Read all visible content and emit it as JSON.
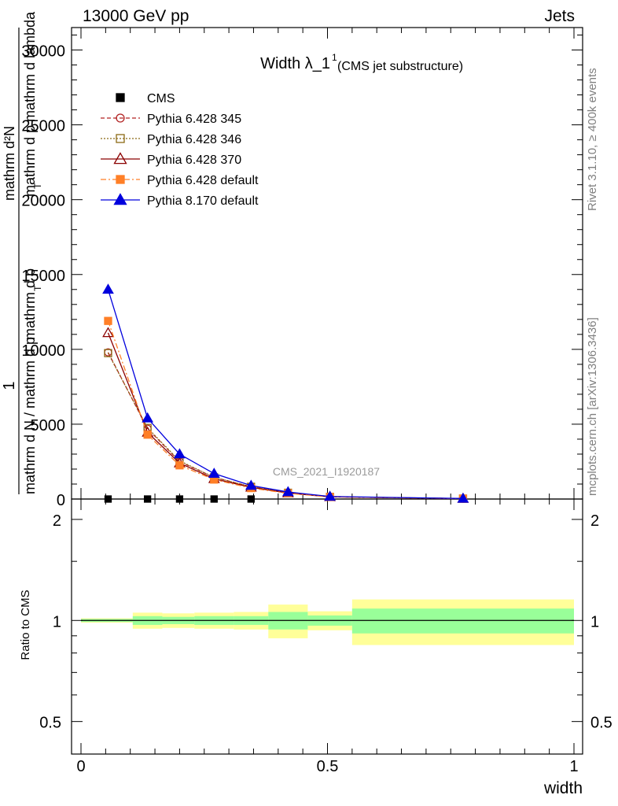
{
  "header": {
    "left": "13000 GeV pp",
    "right": "Jets"
  },
  "side_labels": {
    "rivet": "Rivet 3.1.10, ≥ 400k events",
    "mcplots": "mcplots.cern.ch [arXiv:1306.3436]"
  },
  "chart_data": [
    {
      "type": "line",
      "title_main": "Width λ_1",
      "title_sup": "1",
      "title_sub": "(CMS jet substructure)",
      "watermark": "CMS_2021_I1920187",
      "ylabel": {
        "numerator": "1",
        "line1": "mathrm d N / mathrm d p",
        "line2": "mathrm d p",
        "line3": "mathrm d p",
        "line4": "mathrm d lambda",
        "frac_top": "mathrm d²N",
        "full": "mathrm d N / mathrm d p_T mathrm d p_T mathrm d lambda"
      },
      "ylabel_parts": [
        "1",
        "mathrm d N / mathrm d p",
        "mathrm d p",
        "mathrm d lambda",
        "mathrm d²N",
        "T",
        "T"
      ],
      "xlim": [
        0,
        1
      ],
      "ylim": [
        0,
        31500
      ],
      "yticks": [
        0,
        5000,
        10000,
        15000,
        20000,
        25000,
        30000
      ],
      "ytick_labels": [
        "0",
        "5000",
        "10000",
        "15000",
        "20000",
        "25000",
        "30000"
      ],
      "legend_position": "top-left",
      "series": [
        {
          "name": "CMS",
          "color": "#000000",
          "marker": "filled-square",
          "line": "none",
          "x": [
            0.055,
            0.135,
            0.2,
            0.27,
            0.345
          ],
          "y": [
            0,
            0,
            0,
            0,
            0
          ]
        },
        {
          "name": "Pythia 6.428 345",
          "color": "#b22222",
          "marker": "open-circle",
          "line": "dashed",
          "x": [
            0.055,
            0.135,
            0.2,
            0.27,
            0.345,
            0.42,
            0.505,
            0.775
          ],
          "y": [
            9800,
            4700,
            2500,
            1450,
            820,
            420,
            150,
            30
          ]
        },
        {
          "name": "Pythia 6.428 346",
          "color": "#8b6914",
          "marker": "open-square",
          "line": "dotted",
          "x": [
            0.055,
            0.135,
            0.2,
            0.27,
            0.345,
            0.42,
            0.505,
            0.775
          ],
          "y": [
            9750,
            4750,
            2550,
            1450,
            820,
            420,
            150,
            30
          ]
        },
        {
          "name": "Pythia 6.428 370",
          "color": "#8b0000",
          "marker": "open-triangle",
          "line": "solid",
          "x": [
            0.055,
            0.135,
            0.2,
            0.27,
            0.345,
            0.42,
            0.505,
            0.775
          ],
          "y": [
            11100,
            4450,
            2400,
            1350,
            780,
            400,
            145,
            30
          ]
        },
        {
          "name": "Pythia 6.428 default",
          "color": "#ff7f27",
          "marker": "filled-square",
          "line": "dashdot",
          "x": [
            0.055,
            0.135,
            0.2,
            0.27,
            0.345,
            0.42,
            0.505,
            0.775
          ],
          "y": [
            11900,
            4300,
            2250,
            1300,
            730,
            380,
            140,
            28
          ]
        },
        {
          "name": "Pythia 8.170 default",
          "color": "#0000dd",
          "marker": "filled-triangle",
          "line": "solid",
          "x": [
            0.055,
            0.135,
            0.2,
            0.27,
            0.345,
            0.42,
            0.505,
            0.775
          ],
          "y": [
            14000,
            5400,
            3000,
            1700,
            900,
            470,
            170,
            35
          ]
        }
      ]
    },
    {
      "type": "area",
      "ylabel": "Ratio to CMS",
      "xlabel": "width",
      "xlim": [
        0,
        1
      ],
      "ylim": [
        0.4,
        2.3
      ],
      "scale": "log",
      "yticks": [
        0.5,
        1,
        2
      ],
      "ytick_labels": [
        "0.5",
        "1",
        "2"
      ],
      "xticks": [
        0,
        0.5,
        1
      ],
      "xtick_labels": [
        "0",
        "0.5",
        "1"
      ],
      "bins": [
        {
          "x0": 0.0,
          "x1": 0.105,
          "inner": [
            0.99,
            1.01
          ],
          "outer": [
            0.985,
            1.015
          ]
        },
        {
          "x0": 0.105,
          "x1": 0.165,
          "inner": [
            0.97,
            1.03
          ],
          "outer": [
            0.945,
            1.055
          ]
        },
        {
          "x0": 0.165,
          "x1": 0.23,
          "inner": [
            0.975,
            1.025
          ],
          "outer": [
            0.95,
            1.05
          ]
        },
        {
          "x0": 0.23,
          "x1": 0.31,
          "inner": [
            0.97,
            1.03
          ],
          "outer": [
            0.945,
            1.055
          ]
        },
        {
          "x0": 0.31,
          "x1": 0.38,
          "inner": [
            0.97,
            1.03
          ],
          "outer": [
            0.94,
            1.06
          ]
        },
        {
          "x0": 0.38,
          "x1": 0.46,
          "inner": [
            0.94,
            1.06
          ],
          "outer": [
            0.885,
            1.115
          ]
        },
        {
          "x0": 0.46,
          "x1": 0.55,
          "inner": [
            0.965,
            1.035
          ],
          "outer": [
            0.935,
            1.065
          ]
        },
        {
          "x0": 0.55,
          "x1": 1.0,
          "inner": [
            0.915,
            1.085
          ],
          "outer": [
            0.845,
            1.155
          ]
        }
      ],
      "colors": {
        "inner": "#99ff99",
        "outer": "#ffff99"
      }
    }
  ]
}
